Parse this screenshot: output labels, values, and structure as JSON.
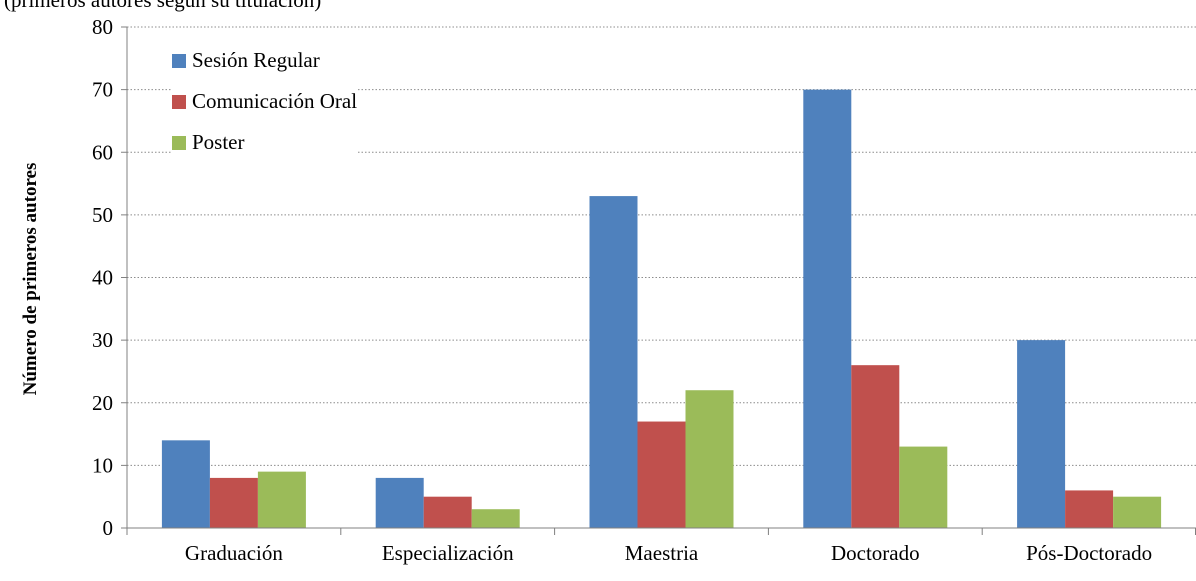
{
  "header": {
    "clipped_text": "(primeros autores según su titulación)"
  },
  "chart_data": {
    "type": "bar",
    "categories": [
      "Graduación",
      "Especialización",
      "Maestria",
      "Doctorado",
      "Pós-Doctorado"
    ],
    "series": [
      {
        "name": "Sesión Regular",
        "values": [
          14,
          8,
          53,
          70,
          30
        ],
        "color": "#4F81BD"
      },
      {
        "name": "Comunicación Oral",
        "values": [
          8,
          5,
          17,
          26,
          6
        ],
        "color": "#C0504D"
      },
      {
        "name": "Poster",
        "values": [
          9,
          3,
          22,
          13,
          5
        ],
        "color": "#9BBB59"
      }
    ],
    "title": "",
    "xlabel": "",
    "ylabel": "Número de primeros autores",
    "ylim": [
      0,
      80
    ],
    "yticks": [
      0,
      10,
      20,
      30,
      40,
      50,
      60,
      70,
      80
    ],
    "grid": true,
    "grid_style": "dotted",
    "legend_position": "top-left"
  }
}
